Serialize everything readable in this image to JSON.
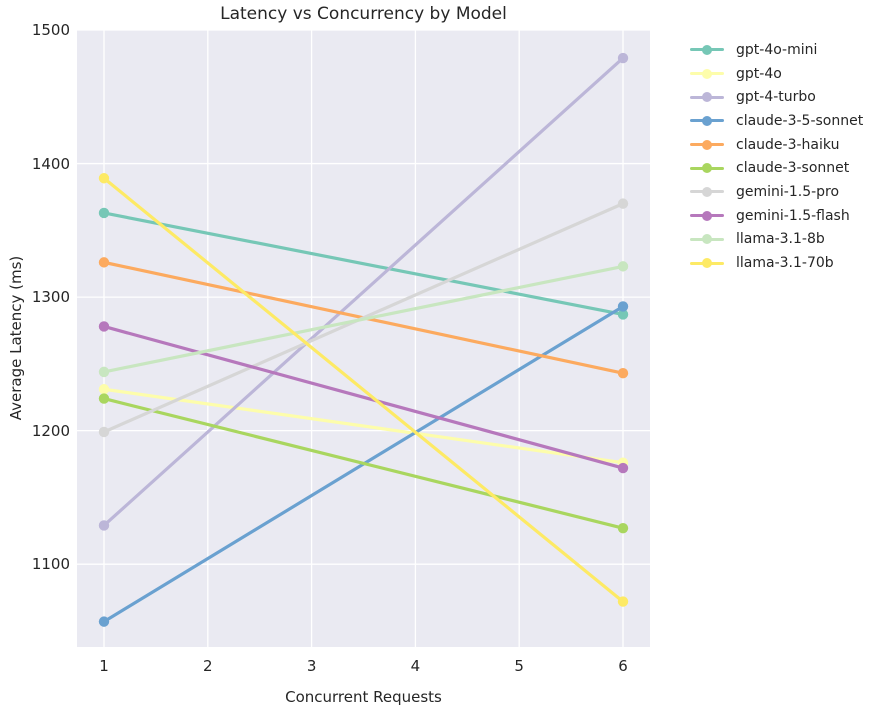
{
  "page": {
    "background": "#ffffff",
    "plot_background": "#eaeaf2",
    "grid_color": "#ffffff",
    "text_color": "#262626"
  },
  "chart_data": {
    "type": "line",
    "title": "Latency vs Concurrency by Model",
    "xlabel": "Concurrent Requests",
    "ylabel": "Average Latency (ms)",
    "x": [
      1,
      6
    ],
    "xticks": [
      1,
      2,
      3,
      4,
      5,
      6
    ],
    "yticks": [
      1100,
      1200,
      1300,
      1400,
      1500
    ],
    "xlim": [
      0.74,
      6.26
    ],
    "ylim": [
      1038,
      1500
    ],
    "grid": true,
    "legend_position": "outside-upper-right",
    "series": [
      {
        "name": "gpt-4o-mini",
        "color": "#76c7b6",
        "values": [
          1363,
          1287
        ]
      },
      {
        "name": "gpt-4o",
        "color": "#fdfdab",
        "values": [
          1231,
          1176
        ]
      },
      {
        "name": "gpt-4-turbo",
        "color": "#bcb6d8",
        "values": [
          1129,
          1479
        ]
      },
      {
        "name": "claude-3-5-sonnet",
        "color": "#6aa1d0",
        "values": [
          1057,
          1293
        ]
      },
      {
        "name": "claude-3-haiku",
        "color": "#fcaa5f",
        "values": [
          1326,
          1243
        ]
      },
      {
        "name": "claude-3-sonnet",
        "color": "#a9d65f",
        "values": [
          1224,
          1127
        ]
      },
      {
        "name": "gemini-1.5-pro",
        "color": "#d6d6d6",
        "values": [
          1199,
          1370
        ]
      },
      {
        "name": "gemini-1.5-flash",
        "color": "#b678bc",
        "values": [
          1278,
          1172
        ]
      },
      {
        "name": "llama-3.1-8b",
        "color": "#c8e6c0",
        "values": [
          1244,
          1323
        ]
      },
      {
        "name": "llama-3.1-70b",
        "color": "#fdea65",
        "values": [
          1389,
          1072
        ]
      }
    ]
  }
}
